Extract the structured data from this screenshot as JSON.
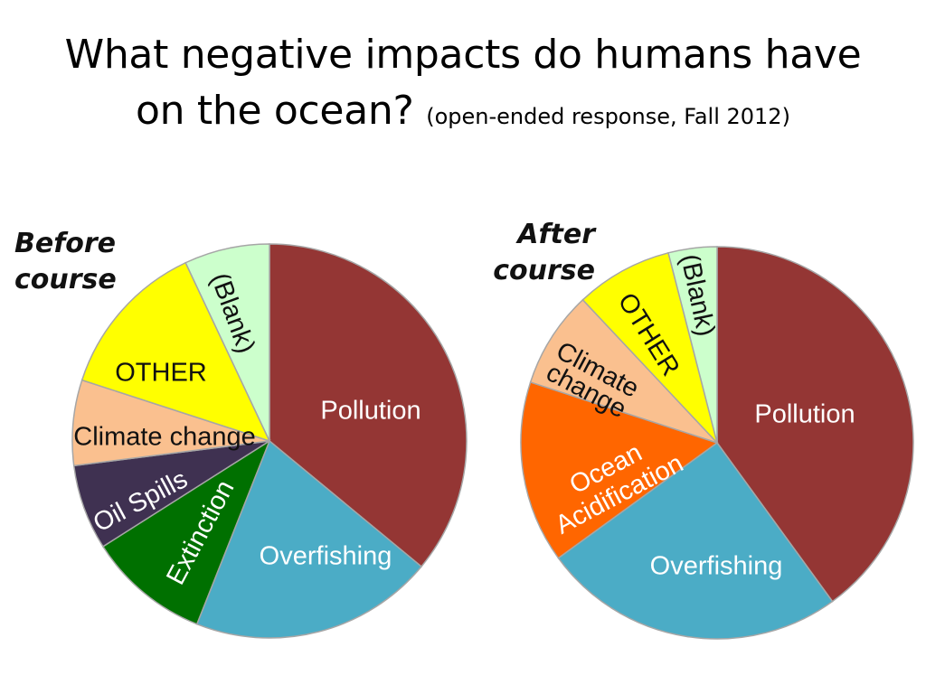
{
  "title": {
    "main_line1": "What negative impacts do humans have",
    "main_line2": "on the ocean?",
    "subtitle": "(open-ended response, Fall 2012)"
  },
  "chart_data": [
    {
      "type": "pie",
      "title": "Before course",
      "start_angle_deg": 0,
      "direction": "clockwise",
      "slices": [
        {
          "label": "Pollution",
          "percent": 36,
          "color": "#943634"
        },
        {
          "label": "Overfishing",
          "percent": 20,
          "color": "#4bacc6"
        },
        {
          "label": "Extinction",
          "percent": 10,
          "color": "#007000"
        },
        {
          "label": "Oil Spills",
          "percent": 7,
          "color": "#3f3151"
        },
        {
          "label": "Climate change",
          "percent": 7,
          "color": "#fac08f"
        },
        {
          "label": "OTHER",
          "percent": 13,
          "color": "#ffff00"
        },
        {
          "label": "(Blank)",
          "percent": 7,
          "color": "#ccffcc"
        }
      ]
    },
    {
      "type": "pie",
      "title": "After course",
      "start_angle_deg": 0,
      "direction": "clockwise",
      "slices": [
        {
          "label": "Pollution",
          "percent": 40,
          "color": "#943634"
        },
        {
          "label": "Overfishing",
          "percent": 25,
          "color": "#4bacc6"
        },
        {
          "label": "Ocean Acidification",
          "percent": 15,
          "color": "#ff6600"
        },
        {
          "label": "Climate change",
          "percent": 8,
          "color": "#fac08f"
        },
        {
          "label": "OTHER",
          "percent": 8,
          "color": "#ffff00"
        },
        {
          "label": "(Blank)",
          "percent": 4,
          "color": "#ccffcc"
        }
      ]
    }
  ]
}
